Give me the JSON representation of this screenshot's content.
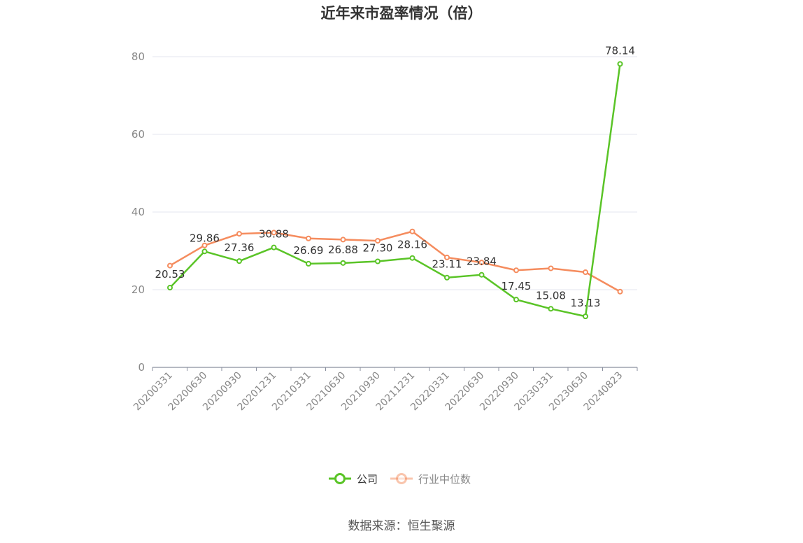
{
  "chart_data": {
    "type": "line",
    "title": "近年来市盈率情况（倍）",
    "categories": [
      "20200331",
      "20200630",
      "20200930",
      "20201231",
      "20210331",
      "20210630",
      "20210930",
      "20211231",
      "20220331",
      "20220630",
      "20220930",
      "20230331",
      "20230630",
      "20240823"
    ],
    "yticks": [
      "0",
      "20",
      "40",
      "60",
      "80"
    ],
    "ylim": [
      0,
      80
    ],
    "grid": true,
    "legend_position": "bottom",
    "series": [
      {
        "name": "公司",
        "color": "#5ac427",
        "values": [
          20.53,
          29.86,
          27.36,
          30.88,
          26.69,
          26.88,
          27.3,
          28.16,
          23.11,
          23.84,
          17.45,
          15.08,
          13.13,
          78.14
        ],
        "labels": [
          "20.53",
          "29.86",
          "27.36",
          "30.88",
          "26.69",
          "26.88",
          "27.30",
          "28.16",
          "23.11",
          "23.84",
          "17.45",
          "15.08",
          "13.13",
          "78.14"
        ]
      },
      {
        "name": "行业中位数",
        "color": "#f58c5e",
        "values": [
          26.2,
          31.4,
          34.4,
          34.7,
          33.2,
          32.9,
          32.6,
          35.0,
          28.3,
          27.0,
          25.0,
          25.5,
          24.5,
          19.5
        ]
      }
    ],
    "source": "数据来源：恒生聚源"
  }
}
